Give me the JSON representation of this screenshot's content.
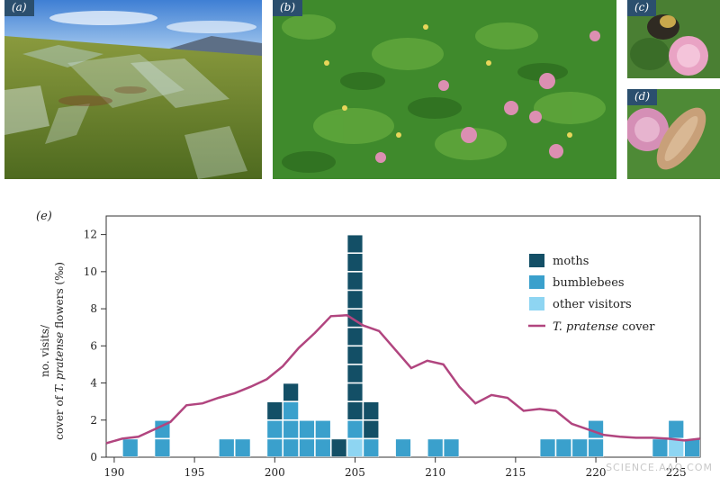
{
  "panels": {
    "a": {
      "tag": "(a)"
    },
    "b": {
      "tag": "(b)"
    },
    "c": {
      "tag": "(c)"
    },
    "d": {
      "tag": "(d)"
    }
  },
  "watermark": "SCIENCE.AAO.COM",
  "chart_data": {
    "type": "bar",
    "panel_label": "(e)",
    "ylabel_line1": "no. visits/",
    "ylabel_line2_prefix": "cover of ",
    "ylabel_line2_italic": "T. pratense",
    "ylabel_line2_suffix": " flowers (‰)",
    "xlim": [
      189.5,
      226.5
    ],
    "ylim": [
      0,
      13
    ],
    "yticks": [
      0,
      2,
      4,
      6,
      8,
      10,
      12
    ],
    "xticks": [
      190,
      195,
      200,
      205,
      210,
      215,
      220,
      225
    ],
    "legend": {
      "placement": "upper-right",
      "moths": "moths",
      "bumblebees": "bumblebees",
      "other": "other visitors",
      "cover_italic": "T. pratense",
      "cover_suffix": " cover"
    },
    "colors": {
      "moths": "#134f66",
      "bumblebees": "#3aa0cc",
      "other": "#8ed5f2",
      "cover": "#b1457f"
    },
    "bars": [
      {
        "day": 191,
        "bumblebees": 1,
        "moths": 0,
        "other": 0
      },
      {
        "day": 193,
        "bumblebees": 2,
        "moths": 0,
        "other": 0
      },
      {
        "day": 197,
        "bumblebees": 1,
        "moths": 0,
        "other": 0
      },
      {
        "day": 198,
        "bumblebees": 1,
        "moths": 0,
        "other": 0
      },
      {
        "day": 200,
        "bumblebees": 2,
        "moths": 1,
        "other": 0
      },
      {
        "day": 201,
        "bumblebees": 3,
        "moths": 1,
        "other": 0
      },
      {
        "day": 202,
        "bumblebees": 2,
        "moths": 0,
        "other": 0
      },
      {
        "day": 203,
        "bumblebees": 2,
        "moths": 0,
        "other": 0
      },
      {
        "day": 204,
        "bumblebees": 0,
        "moths": 1,
        "other": 0
      },
      {
        "day": 205,
        "bumblebees": 1,
        "moths": 10,
        "other": 1
      },
      {
        "day": 206,
        "bumblebees": 1,
        "moths": 2,
        "other": 0
      },
      {
        "day": 208,
        "bumblebees": 1,
        "moths": 0,
        "other": 0
      },
      {
        "day": 210,
        "bumblebees": 1,
        "moths": 0,
        "other": 0
      },
      {
        "day": 211,
        "bumblebees": 1,
        "moths": 0,
        "other": 0
      },
      {
        "day": 217,
        "bumblebees": 1,
        "moths": 0,
        "other": 0
      },
      {
        "day": 218,
        "bumblebees": 1,
        "moths": 0,
        "other": 0
      },
      {
        "day": 219,
        "bumblebees": 1,
        "moths": 0,
        "other": 0
      },
      {
        "day": 220,
        "bumblebees": 2,
        "moths": 0,
        "other": 0
      },
      {
        "day": 224,
        "bumblebees": 1,
        "moths": 0,
        "other": 0
      },
      {
        "day": 225,
        "bumblebees": 1,
        "moths": 0,
        "other": 1
      },
      {
        "day": 226,
        "bumblebees": 1,
        "moths": 0,
        "other": 0
      }
    ],
    "cover": {
      "x": [
        189.5,
        190.5,
        191.5,
        192.5,
        193.5,
        194.5,
        195.5,
        196.5,
        197.5,
        198.5,
        199.5,
        200.5,
        201.5,
        202.5,
        203.5,
        204.5,
        205.5,
        206.5,
        207.5,
        208.5,
        209.5,
        210.5,
        211.5,
        212.5,
        213.5,
        214.5,
        215.5,
        216.5,
        217.5,
        218.5,
        219.5,
        220.5,
        221.5,
        222.5,
        223.5,
        224.5,
        225.5,
        226.5
      ],
      "y": [
        0.75,
        1.0,
        1.1,
        1.5,
        1.9,
        2.8,
        2.9,
        3.2,
        3.45,
        3.8,
        4.2,
        4.9,
        5.9,
        6.7,
        7.6,
        7.65,
        7.1,
        6.8,
        5.8,
        4.8,
        5.2,
        5.0,
        3.8,
        2.9,
        3.35,
        3.2,
        2.5,
        2.6,
        2.5,
        1.8,
        1.5,
        1.2,
        1.1,
        1.05,
        1.05,
        1.0,
        0.9,
        1.0
      ]
    }
  }
}
